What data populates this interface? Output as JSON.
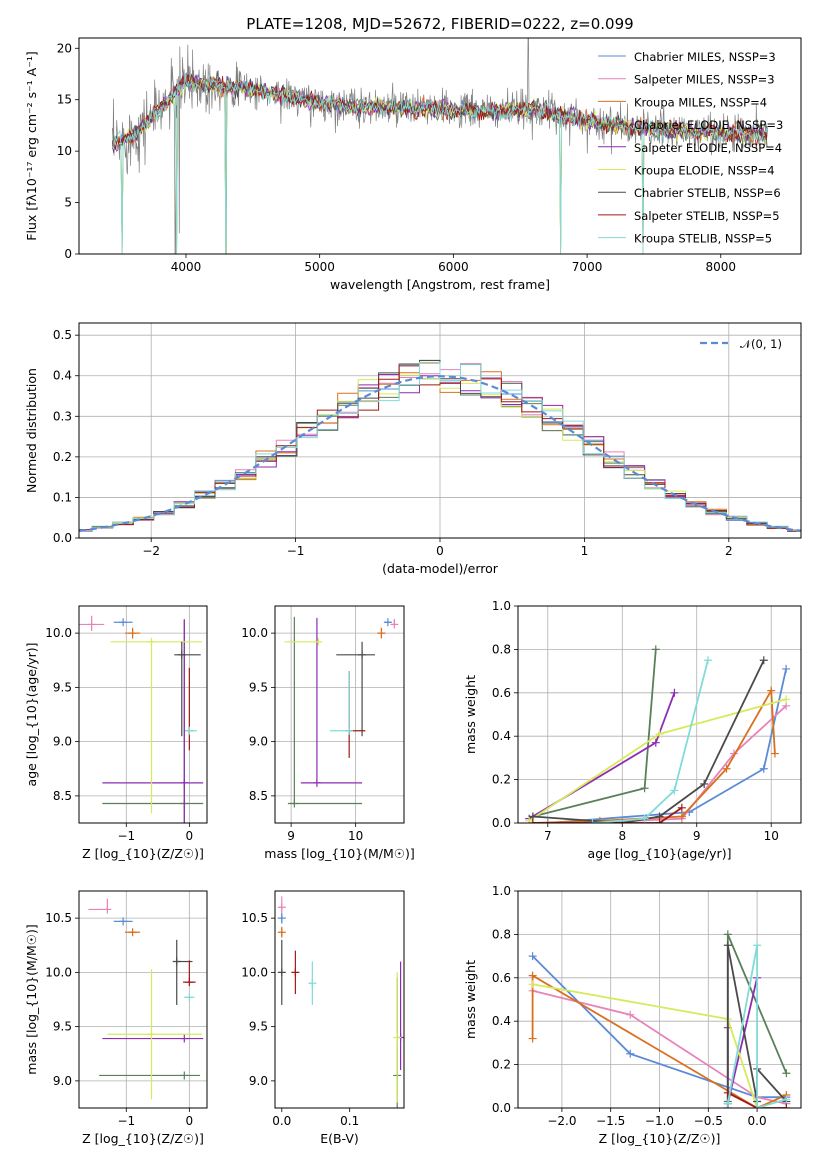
{
  "chart_data": [
    {
      "type": "line",
      "title": "PLATE=1208, MJD=52672, FIBERID=0222, z=0.099",
      "xlabel": "wavelength [Angstrom, rest frame]",
      "ylabel": "Flux [f$_\\lambda$10$^{-17}$ erg cm$^{-2}$ s$^{-1}$ A$^{-1}$]",
      "xlim": [
        3200,
        8600
      ],
      "ylim": [
        0,
        21
      ],
      "xticks": [
        "4000",
        "5000",
        "6000",
        "7000",
        "8000"
      ],
      "yticks": [
        "0",
        "5",
        "10",
        "15",
        "20"
      ],
      "grid": false,
      "legend_position": "top-right",
      "series": [
        {
          "name": "Chabrier MILES, N$_{SSP}$=3",
          "color": "#5b8bd6"
        },
        {
          "name": "Salpeter MILES, N$_{SSP}$=3",
          "color": "#e684b9"
        },
        {
          "name": "Kroupa MILES, N$_{SSP}$=4",
          "color": "#d9701f"
        },
        {
          "name": "Chabrier ELODIE, N$_{SSP}$=3",
          "color": "#5a7f5a"
        },
        {
          "name": "Salpeter ELODIE, N$_{SSP}$=4",
          "color": "#8e2db3"
        },
        {
          "name": "Kroupa ELODIE, N$_{SSP}$=4",
          "color": "#d6ea5b"
        },
        {
          "name": "Chabrier STELIB, N$_{SSP}$=6",
          "color": "#4a4a4a"
        },
        {
          "name": "Salpeter STELIB, N$_{SSP}$=5",
          "color": "#a01818"
        },
        {
          "name": "Kroupa STELIB, N$_{SSP}$=5",
          "color": "#80dbd9"
        }
      ],
      "data_color": "#808080",
      "continuum": {
        "x": [
          3450,
          3600,
          3800,
          4000,
          4200,
          4500,
          4800,
          5000,
          5300,
          5600,
          6000,
          6300,
          6600,
          7000,
          7400,
          7800,
          8000,
          8350
        ],
        "y": [
          10.5,
          11.5,
          14.0,
          16.8,
          16.5,
          16.0,
          15.2,
          14.7,
          14.3,
          14.2,
          14.0,
          13.8,
          14.1,
          12.9,
          12.2,
          11.9,
          11.8,
          11.7
        ]
      },
      "data_spikes": [
        {
          "x": 6560,
          "y": 21
        },
        {
          "x": 4300,
          "y": 0
        },
        {
          "x": 3920,
          "y": 0
        },
        {
          "x": 3950,
          "y": 2
        }
      ],
      "model_dips": [
        {
          "x": 3520,
          "y": 0
        },
        {
          "x": 3930,
          "y": 0
        },
        {
          "x": 4300,
          "y": 0
        },
        {
          "x": 6800,
          "y": 0
        },
        {
          "x": 7420,
          "y": 0
        }
      ]
    },
    {
      "type": "histogram",
      "xlabel": "(data-model)/error",
      "ylabel": "Normed distribution",
      "xlim": [
        -2.5,
        2.5
      ],
      "ylim": [
        0,
        0.53
      ],
      "xticks": [
        "−2",
        "−1",
        "0",
        "1",
        "2"
      ],
      "yticks": [
        "0.0",
        "0.1",
        "0.2",
        "0.3",
        "0.4",
        "0.5"
      ],
      "grid": true,
      "legend": {
        "label": "$\\mathcal{N}(0, 1)$",
        "position": "top-right"
      },
      "bin_edges_range": [
        -2.55,
        2.55
      ],
      "bin_count": 36,
      "reference_curve": "normal pdf, dashed, #5b8bd6"
    },
    {
      "type": "scatter",
      "xlabel": "Z [log$_{10}$(Z/Z$_\\odot$)]",
      "ylabel": "age  [log$_{10}$(age/yr)]",
      "xlim": [
        -1.75,
        0.28
      ],
      "ylim": [
        8.25,
        10.25
      ],
      "xticks": [
        "−1",
        "0"
      ],
      "yticks": [
        "8.5",
        "9.0",
        "9.5",
        "10.0"
      ],
      "grid": true,
      "points": [
        {
          "series": 0,
          "x": -1.05,
          "y": 10.1,
          "xerr": [
            0.15,
            0.15
          ],
          "yerr": [
            0,
            0
          ]
        },
        {
          "series": 1,
          "x": -1.55,
          "y": 10.08,
          "xerr": [
            0.2,
            0.2
          ],
          "yerr": [
            0.06,
            0.08
          ]
        },
        {
          "series": 2,
          "x": -0.9,
          "y": 10.0,
          "xerr": [
            0.12,
            0.12
          ],
          "yerr": [
            0.05,
            0.05
          ]
        },
        {
          "series": 3,
          "x": -0.08,
          "y": 8.43,
          "xerr": [
            1.3,
            0.3
          ],
          "yerr": [
            1.7,
            1.7
          ]
        },
        {
          "series": 4,
          "x": -0.08,
          "y": 8.62,
          "xerr": [
            1.3,
            0.3
          ],
          "yerr": [
            1.5,
            1.5
          ]
        },
        {
          "series": 5,
          "x": -0.6,
          "y": 9.92,
          "xerr": [
            0.65,
            0.8
          ],
          "yerr": [
            1.58,
            0
          ]
        },
        {
          "series": 6,
          "x": -0.12,
          "y": 9.8,
          "xerr": [
            0.12,
            0.3
          ],
          "yerr": [
            0.75,
            0.12
          ]
        },
        {
          "series": 7,
          "x": 0.0,
          "y": 9.1,
          "xerr": [
            0,
            0
          ],
          "yerr": [
            0.18,
            0.58
          ]
        },
        {
          "series": 8,
          "x": 0.0,
          "y": 9.1,
          "xerr": [
            0.05,
            0.12
          ],
          "yerr": [
            0,
            0
          ]
        }
      ]
    },
    {
      "type": "scatter",
      "xlabel": "mass [log$_{10}$(M/M$_\\odot$)]",
      "ylabel": "",
      "xlim": [
        8.75,
        10.75
      ],
      "ylim": [
        8.25,
        10.25
      ],
      "xticks": [
        "9",
        "10"
      ],
      "yticks": [
        "8.5",
        "9.0",
        "9.5",
        "10.0"
      ],
      "grid": true,
      "points": [
        {
          "series": 0,
          "x": 10.5,
          "y": 10.1,
          "xerr": [
            0.05,
            0.05
          ],
          "yerr": [
            0,
            0
          ]
        },
        {
          "series": 1,
          "x": 10.6,
          "y": 10.08,
          "xerr": [
            0.05,
            0.05
          ],
          "yerr": [
            0,
            0.05
          ]
        },
        {
          "series": 2,
          "x": 10.4,
          "y": 10.0,
          "xerr": [
            0.05,
            0.05
          ],
          "yerr": [
            0.05,
            0.05
          ]
        },
        {
          "series": 3,
          "x": 9.05,
          "y": 8.43,
          "xerr": [
            0.1,
            1.05
          ],
          "yerr": [
            0,
            1.72
          ]
        },
        {
          "series": 4,
          "x": 9.4,
          "y": 8.62,
          "xerr": [
            0.25,
            0.7
          ],
          "yerr": [
            0,
            1.52
          ]
        },
        {
          "series": 5,
          "x": 9.42,
          "y": 9.92,
          "xerr": [
            0.52,
            0.0
          ],
          "yerr": [
            0,
            0
          ]
        },
        {
          "series": 6,
          "x": 10.1,
          "y": 9.8,
          "xerr": [
            0.4,
            0.2
          ],
          "yerr": [
            0.75,
            0.12
          ]
        },
        {
          "series": 7,
          "x": 9.9,
          "y": 9.1,
          "xerr": [
            0,
            0.25
          ],
          "yerr": [
            0.25,
            0.55
          ]
        },
        {
          "series": 8,
          "x": 9.9,
          "y": 9.1,
          "xerr": [
            0.3,
            0
          ],
          "yerr": [
            0,
            0.55
          ]
        }
      ]
    },
    {
      "type": "line",
      "xlabel": "age  [log$_{10}$(age/yr)]",
      "ylabel": "mass weight",
      "xlim": [
        6.6,
        10.4
      ],
      "ylim": [
        0,
        1
      ],
      "xticks": [
        "7",
        "8",
        "9",
        "10"
      ],
      "yticks": [
        "0.0",
        "0.2",
        "0.4",
        "0.6",
        "0.8",
        "1.0"
      ],
      "grid": true,
      "series": [
        {
          "index": 0,
          "x": [
            7.0,
            8.9,
            9.9,
            10.2
          ],
          "y": [
            0.0,
            0.05,
            0.25,
            0.71
          ]
        },
        {
          "index": 1,
          "x": [
            7.5,
            8.8,
            9.5,
            10.2
          ],
          "y": [
            0.0,
            0.02,
            0.32,
            0.54
          ]
        },
        {
          "index": 2,
          "x": [
            6.8,
            7.7,
            8.8,
            9.4,
            10.0,
            10.05
          ],
          "y": [
            0.0,
            0.01,
            0.03,
            0.25,
            0.61,
            0.32
          ]
        },
        {
          "index": 3,
          "x": [
            6.8,
            8.3,
            8.45
          ],
          "y": [
            0.03,
            0.16,
            0.8
          ]
        },
        {
          "index": 4,
          "x": [
            6.75,
            8.45,
            8.7
          ],
          "y": [
            0.02,
            0.37,
            0.6
          ]
        },
        {
          "index": 5,
          "x": [
            6.75,
            8.5,
            10.2
          ],
          "y": [
            0.01,
            0.41,
            0.57
          ]
        },
        {
          "index": 6,
          "x": [
            6.8,
            8.0,
            8.5,
            9.1,
            9.9
          ],
          "y": [
            0.03,
            0.0,
            0.03,
            0.18,
            0.75
          ]
        },
        {
          "index": 7,
          "x": [
            6.8,
            8.5,
            8.8
          ],
          "y": [
            0.0,
            0.0,
            0.07
          ]
        },
        {
          "index": 8,
          "x": [
            7.6,
            8.3,
            8.7,
            9.15
          ],
          "y": [
            0.0,
            0.02,
            0.15,
            0.75
          ]
        }
      ]
    },
    {
      "type": "scatter",
      "xlabel": "Z [log$_{10}$(Z/Z$_\\odot$)]",
      "ylabel": "mass [log$_{10}$(M/M$_\\odot$)]",
      "xlim": [
        -1.75,
        0.28
      ],
      "ylim": [
        8.75,
        10.75
      ],
      "xticks": [
        "−1",
        "0"
      ],
      "yticks": [
        "9.0",
        "9.5",
        "10.0",
        "10.5"
      ],
      "grid": true,
      "points": [
        {
          "series": 0,
          "x": -1.05,
          "y": 10.47,
          "xerr": [
            0.15,
            0.15
          ],
          "yerr": [
            0,
            0
          ]
        },
        {
          "series": 1,
          "x": -1.3,
          "y": 10.58,
          "xerr": [
            0.3,
            0.0
          ],
          "yerr": [
            0,
            0.1
          ]
        },
        {
          "series": 2,
          "x": -0.9,
          "y": 10.37,
          "xerr": [
            0.12,
            0.12
          ],
          "yerr": [
            0,
            0
          ]
        },
        {
          "series": 3,
          "x": -0.08,
          "y": 9.05,
          "xerr": [
            1.35,
            0.25
          ],
          "yerr": [
            0,
            0
          ]
        },
        {
          "series": 4,
          "x": -0.08,
          "y": 9.39,
          "xerr": [
            1.3,
            0.3
          ],
          "yerr": [
            0,
            0
          ]
        },
        {
          "series": 5,
          "x": -0.6,
          "y": 9.43,
          "xerr": [
            0.7,
            0.8
          ],
          "yerr": [
            0.6,
            0.6
          ]
        },
        {
          "series": 6,
          "x": -0.2,
          "y": 10.1,
          "xerr": [
            0,
            0.25
          ],
          "yerr": [
            0.4,
            0.2
          ]
        },
        {
          "series": 7,
          "x": 0.0,
          "y": 9.91,
          "xerr": [
            0.1,
            0.1
          ],
          "yerr": [
            0,
            0.2
          ]
        },
        {
          "series": 8,
          "x": 0.0,
          "y": 9.77,
          "xerr": [
            0.08,
            0.08
          ],
          "yerr": [
            0,
            0
          ]
        }
      ]
    },
    {
      "type": "scatter",
      "xlabel": "E(B-V)",
      "ylabel": "",
      "xlim": [
        -0.01,
        0.18
      ],
      "ylim": [
        8.75,
        10.75
      ],
      "xticks": [
        "0.0",
        "0.1"
      ],
      "yticks": [
        "9.0",
        "9.5",
        "10.0",
        "10.5"
      ],
      "grid": false,
      "points": [
        {
          "series": 0,
          "x": 0.0,
          "y": 10.5,
          "yerr": [
            0.05,
            0.05
          ]
        },
        {
          "series": 1,
          "x": 0.0,
          "y": 10.6,
          "yerr": [
            0.05,
            0.1
          ]
        },
        {
          "series": 2,
          "x": 0.0,
          "y": 10.37,
          "yerr": [
            0.05,
            0.05
          ]
        },
        {
          "series": 3,
          "x": 0.17,
          "y": 9.05,
          "yerr": [
            0.3,
            0.9
          ]
        },
        {
          "series": 4,
          "x": 0.175,
          "y": 9.4,
          "yerr": [
            0.3,
            0.7
          ]
        },
        {
          "series": 5,
          "x": 0.17,
          "y": 9.4,
          "yerr": [
            0.6,
            0.6
          ]
        },
        {
          "series": 6,
          "x": 0.0,
          "y": 10.0,
          "yerr": [
            0.3,
            0.3
          ]
        },
        {
          "series": 7,
          "x": 0.02,
          "y": 10.0,
          "yerr": [
            0.2,
            0.2
          ]
        },
        {
          "series": 8,
          "x": 0.045,
          "y": 9.9,
          "yerr": [
            0.2,
            0.2
          ]
        }
      ]
    },
    {
      "type": "line",
      "xlabel": "Z [log$_{10}$(Z/Z$_\\odot$)]",
      "ylabel": "mass weight",
      "xlim": [
        -2.45,
        0.45
      ],
      "ylim": [
        0,
        1
      ],
      "xticks": [
        "−2.0",
        "−1.5",
        "−1.0",
        "−0.5",
        "0.0"
      ],
      "yticks": [
        "0.0",
        "0.2",
        "0.4",
        "0.6",
        "0.8",
        "1.0"
      ],
      "grid": true,
      "series": [
        {
          "index": 0,
          "x": [
            -2.3,
            -1.3,
            0.0,
            0.3
          ],
          "y": [
            0.7,
            0.25,
            0.05,
            0.05
          ]
        },
        {
          "index": 1,
          "x": [
            -2.3,
            -1.3,
            0.0,
            0.3
          ],
          "y": [
            0.54,
            0.43,
            0.05,
            0.02
          ]
        },
        {
          "index": 2,
          "x": [
            -2.3,
            -2.3,
            0.0,
            0.3
          ],
          "y": [
            0.32,
            0.61,
            0.0,
            0.06
          ]
        },
        {
          "index": 3,
          "x": [
            -0.3,
            -0.3,
            0.3
          ],
          "y": [
            0.03,
            0.8,
            0.16
          ]
        },
        {
          "index": 4,
          "x": [
            -0.3,
            -0.3,
            0.0
          ],
          "y": [
            0.37,
            0.02,
            0.6
          ]
        },
        {
          "index": 5,
          "x": [
            -2.3,
            -0.3,
            0.0
          ],
          "y": [
            0.57,
            0.41,
            0.0
          ]
        },
        {
          "index": 6,
          "x": [
            -0.3,
            -0.3,
            0.0,
            0.0,
            0.3
          ],
          "y": [
            0.0,
            0.75,
            0.03,
            0.18,
            0.03
          ]
        },
        {
          "index": 7,
          "x": [
            -0.3,
            0.0,
            0.3
          ],
          "y": [
            0.07,
            0.0,
            0.0
          ]
        },
        {
          "index": 8,
          "x": [
            -0.3,
            0.0,
            0.0,
            0.3
          ],
          "y": [
            0.02,
            0.75,
            0.0,
            0.04
          ]
        }
      ]
    }
  ]
}
